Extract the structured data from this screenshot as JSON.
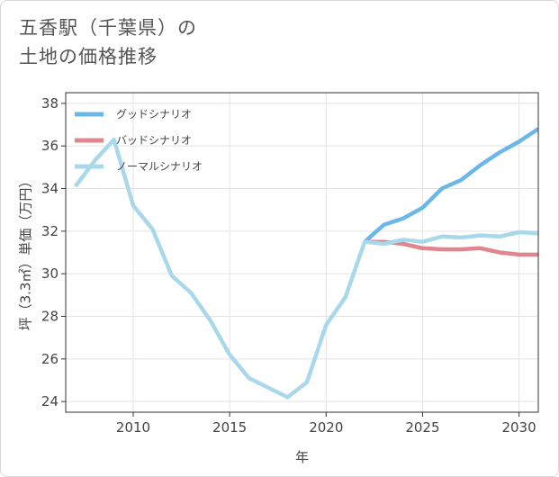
{
  "header": {
    "title_line1": "五香駅（千葉県）の",
    "title_line2": "土地の価格推移"
  },
  "chart_data": {
    "type": "line",
    "title": "五香駅（千葉県）の土地の価格推移",
    "xlabel": "年",
    "ylabel": "坪（3.3㎡）単価（万円）",
    "xlim": [
      2006.5,
      2031
    ],
    "ylim": [
      23.5,
      38.5
    ],
    "x_ticks": [
      2010,
      2015,
      2020,
      2025,
      2030
    ],
    "y_ticks": [
      24,
      26,
      28,
      30,
      32,
      34,
      36,
      38
    ],
    "grid": true,
    "legend_position": "top-left",
    "series": [
      {
        "name": "グッドシナリオ",
        "color": "#6bb8e8",
        "x": [
          2022,
          2023,
          2024,
          2025,
          2026,
          2027,
          2028,
          2029,
          2030,
          2031
        ],
        "y": [
          31.5,
          32.3,
          32.6,
          33.1,
          34.0,
          34.4,
          35.1,
          35.7,
          36.2,
          36.8
        ]
      },
      {
        "name": "バッドシナリオ",
        "color": "#e0868e",
        "x": [
          2022,
          2023,
          2024,
          2025,
          2026,
          2027,
          2028,
          2029,
          2030,
          2031
        ],
        "y": [
          31.5,
          31.5,
          31.4,
          31.2,
          31.15,
          31.15,
          31.2,
          31.0,
          30.9,
          30.9
        ]
      },
      {
        "name": "ノーマルシナリオ",
        "color": "#a9d8ea",
        "x": [
          2007,
          2008,
          2009,
          2010,
          2011,
          2012,
          2013,
          2014,
          2015,
          2016,
          2017,
          2018,
          2019,
          2020,
          2021,
          2022,
          2023,
          2024,
          2025,
          2026,
          2027,
          2028,
          2029,
          2030,
          2031
        ],
        "y": [
          34.1,
          35.3,
          36.3,
          33.2,
          32.1,
          29.9,
          29.1,
          27.8,
          26.2,
          25.1,
          24.65,
          24.2,
          24.9,
          27.6,
          28.9,
          31.5,
          31.4,
          31.6,
          31.5,
          31.75,
          31.7,
          31.8,
          31.75,
          31.95,
          31.9
        ]
      }
    ]
  }
}
